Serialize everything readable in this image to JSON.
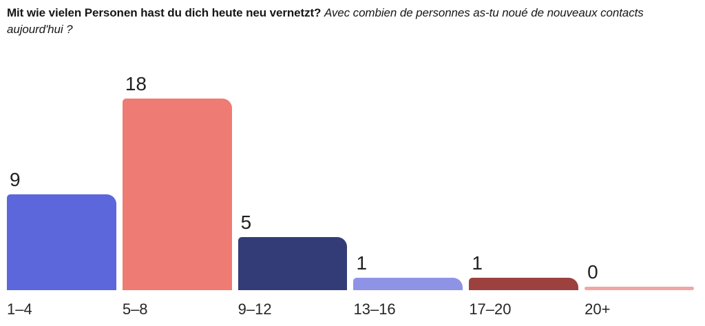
{
  "header": {
    "question_de": "Mit wie vielen Personen hast du dich heute neu vernetzt?",
    "question_fr": "Avec combien de personnes as-tu noué de nouveaux contacts aujourd'hui ?"
  },
  "chart_data": {
    "type": "bar",
    "categories": [
      "1–4",
      "5–8",
      "9–12",
      "13–16",
      "17–20",
      "20+"
    ],
    "values": [
      9,
      18,
      5,
      1,
      1,
      0
    ],
    "bar_colors": [
      "#5b67db",
      "#ee7b74",
      "#333c77",
      "#8f93e6",
      "#9c413d",
      "#f3a5a2"
    ],
    "title": "",
    "xlabel": "",
    "ylabel": "",
    "ylim": [
      0,
      18
    ],
    "grid": false,
    "legend": false,
    "axes_visible": false,
    "value_labels": "above-bar-left",
    "text_color": "#212121",
    "background": "#ffffff"
  }
}
